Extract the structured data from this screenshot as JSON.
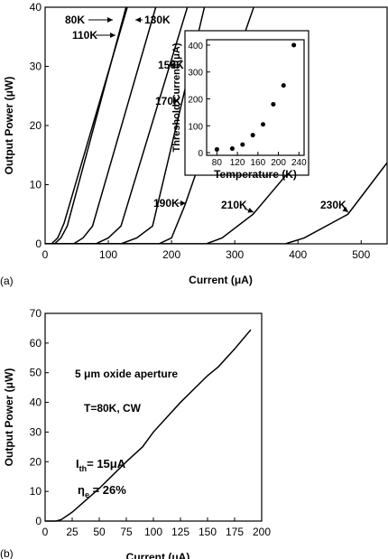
{
  "chart_data": [
    {
      "type": "line",
      "panel_label": "(a)",
      "xlabel": "Current (μA)",
      "ylabel": "Output Power (μW)",
      "xlim": [
        0,
        541
      ],
      "ylim": [
        0,
        40
      ],
      "xticks": [
        0,
        100,
        200,
        300,
        400,
        500
      ],
      "yticks": [
        0,
        10,
        20,
        30,
        40
      ],
      "series": [
        {
          "name": "80K",
          "color": "#000000",
          "x": [
            0,
            10,
            20,
            30,
            130
          ],
          "values": [
            0,
            0,
            1,
            3.5,
            40
          ]
        },
        {
          "name": "110K",
          "color": "#000000",
          "x": [
            0,
            15,
            25,
            35,
            128
          ],
          "values": [
            0,
            0,
            1,
            3,
            40
          ]
        },
        {
          "name": "130K",
          "color": "#000000",
          "x": [
            0,
            45,
            60,
            75,
            175
          ],
          "values": [
            0,
            0,
            1,
            3,
            40
          ]
        },
        {
          "name": "150K",
          "color": "#000000",
          "x": [
            0,
            80,
            100,
            120,
            225
          ],
          "values": [
            0,
            0,
            1,
            3,
            40
          ]
        },
        {
          "name": "170K",
          "color": "#000000",
          "x": [
            0,
            120,
            145,
            170,
            252
          ],
          "values": [
            0,
            0,
            1,
            3,
            40
          ]
        },
        {
          "name": "190K",
          "color": "#000000",
          "x": [
            0,
            180,
            200,
            221,
            330
          ],
          "values": [
            0,
            0,
            1,
            6.5,
            40
          ]
        },
        {
          "name": "210K",
          "color": "#000000",
          "x": [
            0,
            255,
            280,
            329,
            400
          ],
          "values": [
            0,
            0,
            1,
            5,
            14
          ]
        },
        {
          "name": "230K",
          "color": "#000000",
          "x": [
            0,
            380,
            410,
            479,
            541
          ],
          "values": [
            0,
            0,
            1,
            5,
            13.7
          ]
        }
      ]
    },
    {
      "type": "scatter",
      "xlabel": "Temperature (K)",
      "ylabel": "Threshold Current (μA)",
      "xlim": [
        60,
        250
      ],
      "ylim": [
        -10,
        420
      ],
      "xticks": [
        80,
        120,
        160,
        200,
        240
      ],
      "yticks": [
        0,
        100,
        200,
        300,
        400
      ],
      "color": "#000000",
      "x": [
        80,
        110,
        130,
        150,
        170,
        190,
        210,
        230
      ],
      "values": [
        12,
        15,
        30,
        65,
        105,
        180,
        250,
        400
      ]
    },
    {
      "type": "line",
      "panel_label": "(b)",
      "xlabel": "Current (μA)",
      "ylabel": "Output Power (μW)",
      "xlim": [
        0,
        200
      ],
      "ylim": [
        0,
        70
      ],
      "xticks": [
        0,
        25,
        50,
        75,
        100,
        125,
        150,
        175,
        200
      ],
      "yticks": [
        0,
        10,
        20,
        30,
        40,
        50,
        60,
        70
      ],
      "series": [
        {
          "color": "#000000",
          "x": [
            0,
            10,
            15,
            25,
            50,
            75,
            90,
            100,
            125,
            150,
            160,
            175,
            190
          ],
          "values": [
            0,
            0,
            0.5,
            3,
            11,
            20,
            25,
            30,
            40,
            49,
            52,
            58,
            64.5
          ]
        }
      ],
      "annotations": [
        "5 μm oxide aperture",
        "T=80K, CW"
      ],
      "threshold": {
        "symbol": "I",
        "subscript": "th",
        "text": "= 15μA"
      },
      "efficiency": {
        "symbol": "η",
        "subscript": "e",
        "text": " = 26%"
      }
    }
  ]
}
